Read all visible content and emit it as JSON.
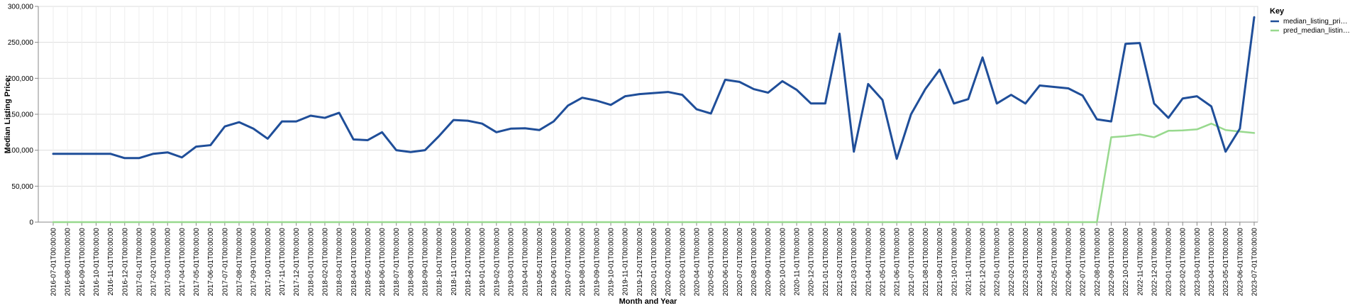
{
  "chart_data": {
    "type": "line",
    "xlabel": "Month and Year",
    "ylabel": "Median Listing Price:",
    "ylim": [
      0,
      300000
    ],
    "yticks": [
      "0",
      "50,000",
      "100,000",
      "150,000",
      "200,000",
      "250,000",
      "300,000"
    ],
    "grid": true,
    "legend": {
      "title": "Key",
      "position": "top-right",
      "entries": [
        "median_listing_pri…",
        "pred_median_listin…"
      ]
    },
    "colors": {
      "median_listing_price": "#1f4e99",
      "pred_median_listing_price": "#98d98e"
    },
    "x": [
      "2016-07-01T00:00:00",
      "2016-08-01T00:00:00",
      "2016-09-01T00:00:00",
      "2016-10-01T00:00:00",
      "2016-11-01T00:00:00",
      "2016-12-01T00:00:00",
      "2017-01-01T00:00:00",
      "2017-02-01T00:00:00",
      "2017-03-01T00:00:00",
      "2017-04-01T00:00:00",
      "2017-05-01T00:00:00",
      "2017-06-01T00:00:00",
      "2017-07-01T00:00:00",
      "2017-08-01T00:00:00",
      "2017-09-01T00:00:00",
      "2017-10-01T00:00:00",
      "2017-11-01T00:00:00",
      "2017-12-01T00:00:00",
      "2018-01-01T00:00:00",
      "2018-02-01T00:00:00",
      "2018-03-01T00:00:00",
      "2018-04-01T00:00:00",
      "2018-05-01T00:00:00",
      "2018-06-01T00:00:00",
      "2018-07-01T00:00:00",
      "2018-08-01T00:00:00",
      "2018-09-01T00:00:00",
      "2018-10-01T00:00:00",
      "2018-11-01T00:00:00",
      "2018-12-01T00:00:00",
      "2019-01-01T00:00:00",
      "2019-02-01T00:00:00",
      "2019-03-01T00:00:00",
      "2019-04-01T00:00:00",
      "2019-05-01T00:00:00",
      "2019-06-01T00:00:00",
      "2019-07-01T00:00:00",
      "2019-08-01T00:00:00",
      "2019-09-01T00:00:00",
      "2019-10-01T00:00:00",
      "2019-11-01T00:00:00",
      "2019-12-01T00:00:00",
      "2020-01-01T00:00:00",
      "2020-02-01T00:00:00",
      "2020-03-01T00:00:00",
      "2020-04-01T00:00:00",
      "2020-05-01T00:00:00",
      "2020-06-01T00:00:00",
      "2020-07-01T00:00:00",
      "2020-08-01T00:00:00",
      "2020-09-01T00:00:00",
      "2020-10-01T00:00:00",
      "2020-11-01T00:00:00",
      "2020-12-01T00:00:00",
      "2021-01-01T00:00:00",
      "2021-02-01T00:00:00",
      "2021-03-01T00:00:00",
      "2021-04-01T00:00:00",
      "2021-05-01T00:00:00",
      "2021-06-01T00:00:00",
      "2021-07-01T00:00:00",
      "2021-08-01T00:00:00",
      "2021-09-01T00:00:00",
      "2021-10-01T00:00:00",
      "2021-11-01T00:00:00",
      "2021-12-01T00:00:00",
      "2022-01-01T00:00:00",
      "2022-02-01T00:00:00",
      "2022-03-01T00:00:00",
      "2022-04-01T00:00:00",
      "2022-05-01T00:00:00",
      "2022-06-01T00:00:00",
      "2022-07-01T00:00:00",
      "2022-08-01T00:00:00",
      "2022-09-01T00:00:00",
      "2022-10-01T00:00:00",
      "2022-11-01T00:00:00",
      "2022-12-01T00:00:00",
      "2023-01-01T00:00:00",
      "2023-02-01T00:00:00",
      "2023-03-01T00:00:00",
      "2023-04-01T00:00:00",
      "2023-05-01T00:00:00",
      "2023-06-01T00:00:00",
      "2023-07-01T00:00:00"
    ],
    "series": [
      {
        "name": "median_listing_pri…",
        "values": [
          95000,
          95000,
          95000,
          95000,
          95000,
          89000,
          89000,
          95000,
          97000,
          90000,
          105000,
          107000,
          133000,
          139000,
          130000,
          116000,
          140000,
          140000,
          148000,
          145000,
          152000,
          115000,
          114000,
          125000,
          100000,
          97500,
          100000,
          120000,
          142000,
          141000,
          137000,
          125000,
          130000,
          130500,
          128000,
          140000,
          162000,
          173000,
          169000,
          163000,
          175000,
          178000,
          179500,
          181000,
          177000,
          157000,
          151000,
          198000,
          195000,
          185000,
          180000,
          196000,
          184000,
          165000,
          165000,
          262000,
          98000,
          192000,
          170000,
          88000,
          150000,
          185000,
          212000,
          165000,
          171000,
          229000,
          165000,
          177000,
          165000,
          190000,
          188000,
          186000,
          176000,
          143000,
          140000,
          248000,
          249000,
          165000,
          145000,
          172000,
          175000,
          161000,
          98000,
          130000,
          285000
        ]
      },
      {
        "name": "pred_median_listin…",
        "values": [
          0,
          0,
          0,
          0,
          0,
          0,
          0,
          0,
          0,
          0,
          0,
          0,
          0,
          0,
          0,
          0,
          0,
          0,
          0,
          0,
          0,
          0,
          0,
          0,
          0,
          0,
          0,
          0,
          0,
          0,
          0,
          0,
          0,
          0,
          0,
          0,
          0,
          0,
          0,
          0,
          0,
          0,
          0,
          0,
          0,
          0,
          0,
          0,
          0,
          0,
          0,
          0,
          0,
          0,
          0,
          0,
          0,
          0,
          0,
          0,
          0,
          0,
          0,
          0,
          0,
          0,
          0,
          0,
          0,
          0,
          0,
          0,
          0,
          0,
          118000,
          119500,
          122000,
          118000,
          127000,
          127500,
          129000,
          137000,
          128000,
          126000,
          124000
        ]
      }
    ]
  }
}
